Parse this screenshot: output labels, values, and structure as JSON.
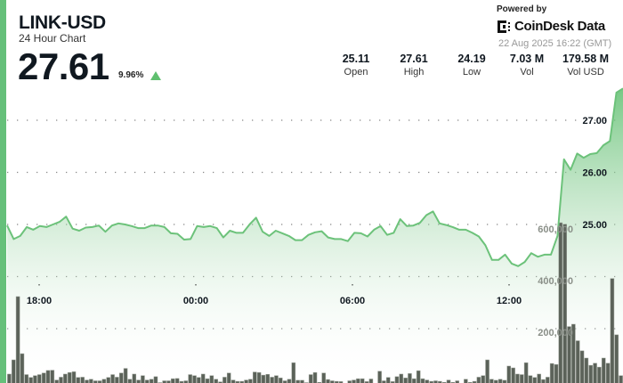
{
  "header": {
    "title": "LINK-USD",
    "subtitle": "24 Hour Chart",
    "price": "27.61",
    "change_pct": "9.96%",
    "change_direction": "up",
    "powered_by": "Powered by",
    "brand": "CoinDesk Data",
    "timestamp": "22 Aug 2025 16:22 (GMT)"
  },
  "stats": [
    {
      "value": "25.11",
      "label": "Open"
    },
    {
      "value": "27.61",
      "label": "High"
    },
    {
      "value": "24.19",
      "label": "Low"
    },
    {
      "value": "7.03 M",
      "label": "Vol"
    },
    {
      "value": "179.58 M",
      "label": "Vol USD"
    }
  ],
  "colors": {
    "accent": "#66c07a",
    "line": "#6cc27a",
    "volume_bar": "#5b6259",
    "text": "#101820"
  },
  "chart_data": {
    "type": "line",
    "price": {
      "first_time": "16:45",
      "interval_minutes": 15,
      "values": [
        24.98,
        24.72,
        24.78,
        24.95,
        24.9,
        24.97,
        24.95,
        25.0,
        25.05,
        25.15,
        24.92,
        24.88,
        24.94,
        24.95,
        24.98,
        24.86,
        24.98,
        25.02,
        25.0,
        24.97,
        24.93,
        24.93,
        24.98,
        24.98,
        24.95,
        24.83,
        24.82,
        24.71,
        24.72,
        24.97,
        24.95,
        24.97,
        24.93,
        24.75,
        24.88,
        24.84,
        24.84,
        25.0,
        25.13,
        24.86,
        24.78,
        24.88,
        24.83,
        24.78,
        24.7,
        24.7,
        24.8,
        24.85,
        24.87,
        24.75,
        24.72,
        24.72,
        24.68,
        24.84,
        24.83,
        24.77,
        24.9,
        24.97,
        24.8,
        24.84,
        25.1,
        24.97,
        24.98,
        25.03,
        25.18,
        25.25,
        25.02,
        24.99,
        24.95,
        24.9,
        24.9,
        24.84,
        24.77,
        24.6,
        24.32,
        24.32,
        24.42,
        24.25,
        24.2,
        24.28,
        24.45,
        24.38,
        24.42,
        24.42,
        24.78,
        26.25,
        26.05,
        26.36,
        26.28,
        26.35,
        26.37,
        26.52,
        26.6,
        27.53,
        27.61
      ],
      "yticks": [
        "27.00",
        "26.00",
        "25.00"
      ],
      "ylim": [
        23.0,
        27.65
      ]
    },
    "volume": {
      "values": [
        38000,
        93000,
        338000,
        117000,
        36000,
        25000,
        32000,
        36000,
        42000,
        52000,
        53000,
        15000,
        26000,
        38000,
        44000,
        47000,
        25000,
        26000,
        15000,
        18000,
        12000,
        12000,
        18000,
        25000,
        36000,
        26000,
        42000,
        60000,
        18000,
        38000,
        15000,
        32000,
        15000,
        18000,
        28000,
        5000,
        12000,
        12000,
        20000,
        21000,
        10000,
        12000,
        36000,
        32000,
        25000,
        38000,
        20000,
        32000,
        18000,
        8000,
        26000,
        42000,
        15000,
        10000,
        10000,
        15000,
        18000,
        46000,
        44000,
        34000,
        37000,
        26000,
        32000,
        23000,
        12000,
        18000,
        82000,
        14000,
        14000,
        5000,
        36000,
        44000,
        6000,
        42000,
        17000,
        12000,
        10000,
        9000,
        2000,
        12000,
        15000,
        20000,
        20000,
        9000,
        19000,
        2000,
        49000,
        12000,
        25000,
        9000,
        28000,
        38000,
        23000,
        40000,
        20000,
        51000,
        20000,
        15000,
        10000,
        12000,
        10000,
        6000,
        15000,
        6000,
        12000,
        2000,
        18000,
        6000,
        10000,
        26000,
        32000,
        93000,
        18000,
        14000,
        18000,
        14000,
        69000,
        62000,
        38000,
        36000,
        82000,
        32000,
        25000,
        38000,
        17000,
        26000,
        79000,
        75000,
        624000,
        618000,
        222000,
        231000,
        167000,
        128000,
        100000,
        72000,
        80000,
        65000,
        100000,
        80000,
        408000,
        190000,
        32000
      ],
      "yticks": [
        "600,000",
        "400,000",
        "200,000"
      ],
      "ylim": [
        0,
        620000
      ]
    },
    "xticks": [
      "18:00",
      "00:00",
      "06:00",
      "12:00"
    ]
  }
}
